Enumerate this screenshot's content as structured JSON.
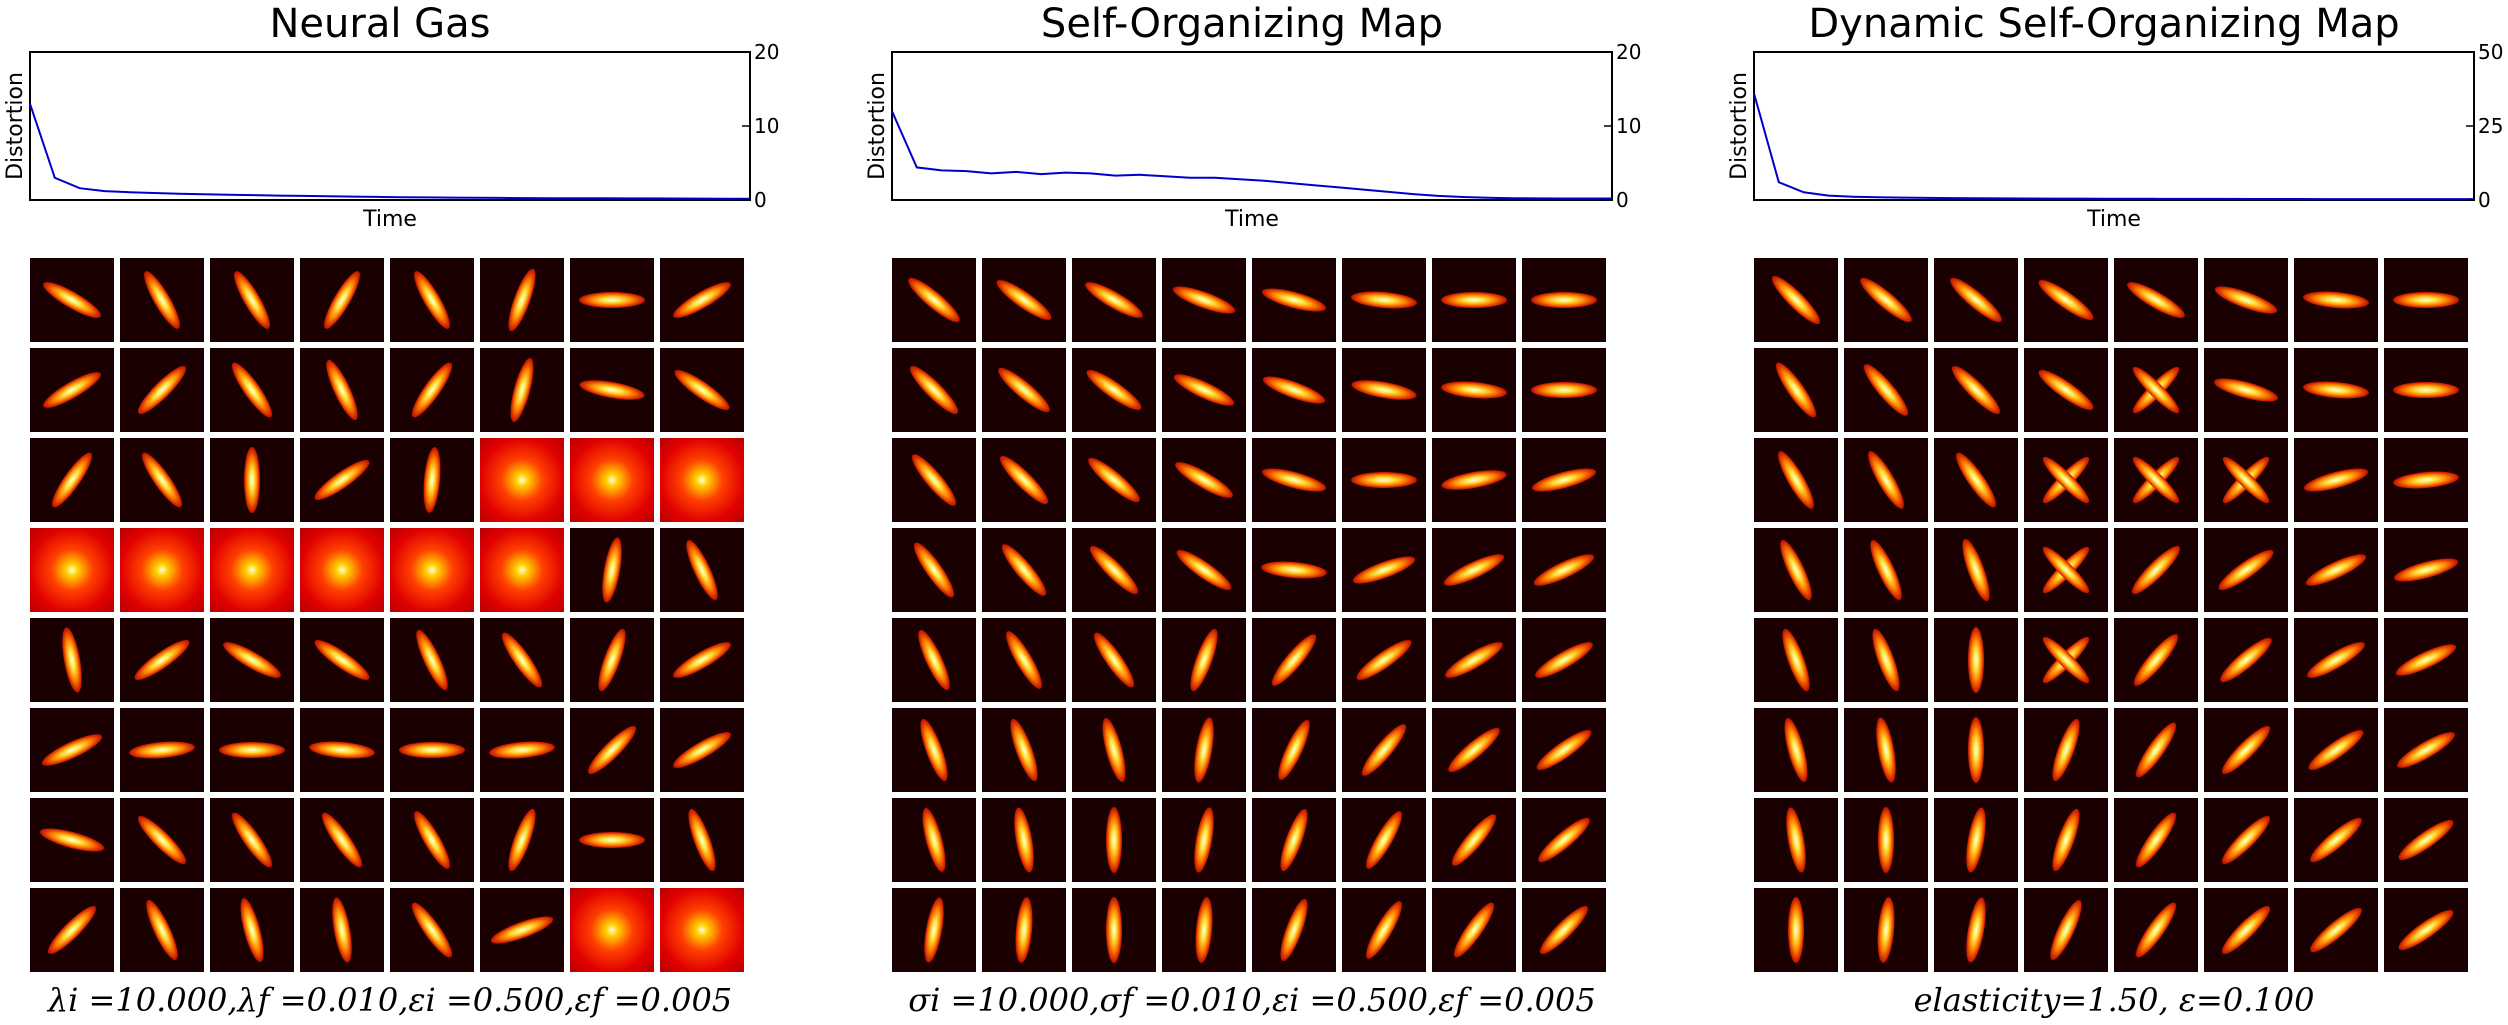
{
  "chart_data": [
    {
      "type": "line",
      "title": "Neural Gas",
      "xlabel": "Time",
      "ylabel": "Distortion",
      "ylim": [
        0,
        20
      ],
      "yticks": [
        "0",
        "10",
        "20"
      ],
      "series": [
        {
          "values": [
            13.0,
            3.0,
            1.6,
            1.2,
            1.05,
            0.95,
            0.85,
            0.78,
            0.72,
            0.66,
            0.6,
            0.55,
            0.5,
            0.46,
            0.42,
            0.38,
            0.35,
            0.32,
            0.3,
            0.28,
            0.26,
            0.25,
            0.24,
            0.23,
            0.22,
            0.21,
            0.2,
            0.19,
            0.18,
            0.18
          ]
        }
      ],
      "color": "#0000cc",
      "params": "λi =10.000,λf =0.010,εi =0.500,εf =0.005",
      "grid": {
        "rows": 8,
        "cols": 8,
        "angles": [
          [
            -30,
            -60,
            -60,
            60,
            -60,
            70,
            0,
            30
          ],
          [
            30,
            45,
            -55,
            -65,
            55,
            75,
            -10,
            -35
          ],
          [
            55,
            -55,
            90,
            35,
            85,
            "dot",
            "dot",
            "dot"
          ],
          [
            "dot",
            "dot",
            "dot",
            "dot",
            "dot",
            "dot",
            80,
            -65
          ],
          [
            -80,
            35,
            -30,
            -35,
            -65,
            -55,
            70,
            30
          ],
          [
            25,
            5,
            0,
            -5,
            0,
            5,
            45,
            30
          ],
          [
            -15,
            -45,
            -55,
            -55,
            -60,
            70,
            0,
            -70
          ],
          [
            45,
            -65,
            -75,
            -80,
            -55,
            20,
            "dot",
            "dot"
          ]
        ]
      }
    },
    {
      "type": "line",
      "title": "Self-Organizing Map",
      "xlabel": "Time",
      "ylabel": "Distortion",
      "ylim": [
        0,
        20
      ],
      "yticks": [
        "0",
        "10",
        "20"
      ],
      "series": [
        {
          "values": [
            12.0,
            4.4,
            4.0,
            3.9,
            3.6,
            3.8,
            3.5,
            3.7,
            3.6,
            3.3,
            3.4,
            3.2,
            3.0,
            3.0,
            2.8,
            2.6,
            2.3,
            2.0,
            1.7,
            1.4,
            1.1,
            0.8,
            0.55,
            0.4,
            0.3,
            0.25,
            0.22,
            0.2,
            0.2,
            0.2
          ]
        }
      ],
      "color": "#0000cc",
      "params": "σi =10.000,σf =0.010,εi =0.500,εf =0.005",
      "grid": {
        "rows": 8,
        "cols": 8,
        "angles": [
          [
            -40,
            -35,
            -30,
            -20,
            -15,
            -5,
            0,
            0
          ],
          [
            -45,
            -40,
            -35,
            -25,
            -20,
            -10,
            -5,
            0
          ],
          [
            -50,
            -45,
            -40,
            -30,
            -15,
            0,
            10,
            15
          ],
          [
            -55,
            -50,
            -45,
            -35,
            -5,
            20,
            25,
            25
          ],
          [
            -65,
            -60,
            -55,
            70,
            50,
            35,
            30,
            30
          ],
          [
            -70,
            -70,
            -75,
            80,
            65,
            50,
            40,
            35
          ],
          [
            -75,
            -80,
            90,
            80,
            70,
            60,
            50,
            40
          ],
          [
            80,
            85,
            90,
            85,
            70,
            60,
            55,
            45
          ]
        ]
      }
    },
    {
      "type": "line",
      "title": "Dynamic Self-Organizing Map",
      "xlabel": "Time",
      "ylabel": "Distortion",
      "ylim": [
        0,
        50
      ],
      "yticks": [
        "0",
        "25",
        "50"
      ],
      "series": [
        {
          "values": [
            36.0,
            6.0,
            2.6,
            1.5,
            1.1,
            0.9,
            0.8,
            0.7,
            0.65,
            0.6,
            0.55,
            0.5,
            0.48,
            0.46,
            0.44,
            0.42,
            0.4,
            0.38,
            0.37,
            0.36,
            0.35,
            0.34,
            0.33,
            0.32,
            0.31,
            0.3,
            0.3,
            0.3,
            0.3,
            0.3
          ]
        }
      ],
      "color": "#0000cc",
      "params": "elasticity=1.50, ε=0.100",
      "grid": {
        "rows": 8,
        "cols": 8,
        "angles": [
          [
            -45,
            -40,
            -40,
            -35,
            -30,
            -20,
            -5,
            0
          ],
          [
            -55,
            -50,
            -45,
            -35,
            "cross",
            -15,
            -5,
            0
          ],
          [
            -60,
            -60,
            -55,
            "cross",
            "cross",
            "cross",
            15,
            5
          ],
          [
            -65,
            -65,
            -70,
            "cross",
            45,
            35,
            25,
            15
          ],
          [
            -70,
            -70,
            90,
            "cross",
            50,
            40,
            30,
            25
          ],
          [
            -75,
            -80,
            90,
            70,
            55,
            45,
            35,
            30
          ],
          [
            -80,
            90,
            80,
            70,
            55,
            45,
            40,
            35
          ],
          [
            90,
            85,
            80,
            65,
            55,
            45,
            40,
            35
          ]
        ]
      }
    }
  ]
}
